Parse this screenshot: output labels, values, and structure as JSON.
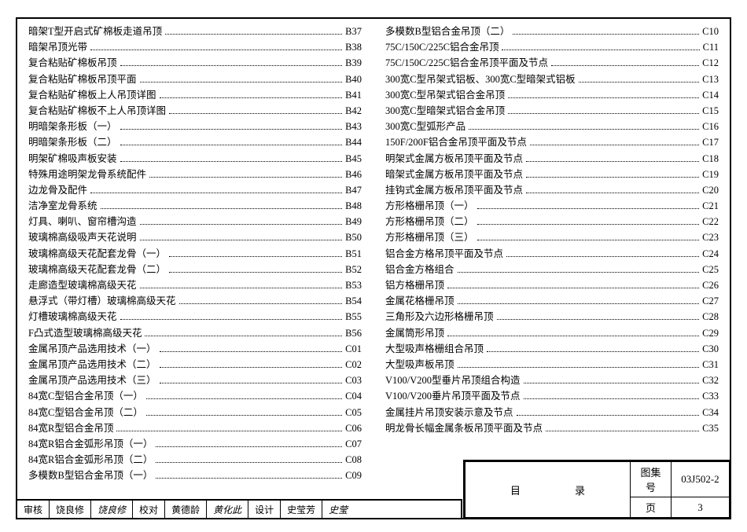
{
  "left_column": [
    {
      "label": "暗架T型开启式矿棉板走道吊顶",
      "code": "B37"
    },
    {
      "label": "暗架吊顶光带",
      "code": "B38"
    },
    {
      "label": "复合粘贴矿棉板吊顶",
      "code": "B39"
    },
    {
      "label": "复合粘贴矿棉板吊顶平面",
      "code": "B40"
    },
    {
      "label": "复合粘贴矿棉板上人吊顶详图",
      "code": "B41"
    },
    {
      "label": "复合粘贴矿棉板不上人吊顶详图",
      "code": "B42"
    },
    {
      "label": "明暗架条形板（一）",
      "code": "B43"
    },
    {
      "label": "明暗架条形板（二）",
      "code": "B44"
    },
    {
      "label": "明架矿棉吸声板安装",
      "code": "B45"
    },
    {
      "label": "特殊用途明架龙骨系统配件",
      "code": "B46"
    },
    {
      "label": "边龙骨及配件",
      "code": "B47"
    },
    {
      "label": "洁净室龙骨系统",
      "code": "B48"
    },
    {
      "label": "灯具、喇叭、窗帘槽沟造",
      "code": "B49"
    },
    {
      "label": "玻璃棉高级吸声天花说明",
      "code": "B50"
    },
    {
      "label": "玻璃棉高级天花配套龙骨（一）",
      "code": "B51"
    },
    {
      "label": "玻璃棉高级天花配套龙骨（二）",
      "code": "B52"
    },
    {
      "label": "走廊造型玻璃棉高级天花",
      "code": "B53"
    },
    {
      "label": "悬浮式（带灯槽）玻璃棉高级天花",
      "code": "B54"
    },
    {
      "label": "灯槽玻璃棉高级天花",
      "code": "B55"
    },
    {
      "label": "F凸式造型玻璃棉高级天花",
      "code": "B56"
    },
    {
      "label": "金属吊顶产品选用技术（一）",
      "code": "C01"
    },
    {
      "label": "金属吊顶产品选用技术（二）",
      "code": "C02"
    },
    {
      "label": "金属吊顶产品选用技术（三）",
      "code": "C03"
    },
    {
      "label": "84宽C型铝合金吊顶（一）",
      "code": "C04"
    },
    {
      "label": "84宽C型铝合金吊顶（二）",
      "code": "C05"
    },
    {
      "label": "84宽R型铝合金吊顶",
      "code": "C06"
    },
    {
      "label": "84宽R铝合金弧形吊顶（一）",
      "code": "C07"
    },
    {
      "label": "84宽R铝合金弧形吊顶（二）",
      "code": "C08"
    },
    {
      "label": "多模数B型铝合金吊顶（一）",
      "code": "C09"
    }
  ],
  "right_column": [
    {
      "label": "多模数B型铝合金吊顶（二）",
      "code": "C10"
    },
    {
      "label": "75C/150C/225C铝合金吊顶",
      "code": "C11"
    },
    {
      "label": "75C/150C/225C铝合金吊顶平面及节点",
      "code": "C12"
    },
    {
      "label": "300宽C型吊架式铝板、300宽C型暗架式铝板",
      "code": "C13"
    },
    {
      "label": "300宽C型吊架式铝合金吊顶",
      "code": "C14"
    },
    {
      "label": "300宽C型暗架式铝合金吊顶",
      "code": "C15"
    },
    {
      "label": "300宽C型弧形产品",
      "code": "C16"
    },
    {
      "label": "150F/200F铝合金吊顶平面及节点",
      "code": "C17"
    },
    {
      "label": "明架式金属方板吊顶平面及节点",
      "code": "C18"
    },
    {
      "label": "暗架式金属方板吊顶平面及节点",
      "code": "C19"
    },
    {
      "label": "挂钩式金属方板吊顶平面及节点",
      "code": "C20"
    },
    {
      "label": "方形格栅吊顶（一）",
      "code": "C21"
    },
    {
      "label": "方形格栅吊顶（二）",
      "code": "C22"
    },
    {
      "label": "方形格栅吊顶（三）",
      "code": "C23"
    },
    {
      "label": "铝合金方格吊顶平面及节点",
      "code": "C24"
    },
    {
      "label": "铝合金方格组合",
      "code": "C25"
    },
    {
      "label": "铝方格栅吊顶",
      "code": "C26"
    },
    {
      "label": "金属花格栅吊顶",
      "code": "C27"
    },
    {
      "label": "三角形及六边形格栅吊顶",
      "code": "C28"
    },
    {
      "label": "金属筒形吊顶",
      "code": "C29"
    },
    {
      "label": "大型吸声格栅组合吊顶",
      "code": "C30"
    },
    {
      "label": "大型吸声板吊顶",
      "code": "C31"
    },
    {
      "label": "V100/V200型垂片吊顶组合构造",
      "code": "C32"
    },
    {
      "label": "V100/V200垂片吊顶平面及节点",
      "code": "C33"
    },
    {
      "label": "金属挂片吊顶安装示意及节点",
      "code": "C34"
    },
    {
      "label": "明龙骨长幅金属条板吊顶平面及节点",
      "code": "C35"
    }
  ],
  "title_block": {
    "title": "目　录",
    "series_label": "图集号",
    "series_value": "03J502-2",
    "page_label": "页",
    "page_value": "3"
  },
  "sign_strip": {
    "check_label": "审核",
    "check_name": "饶良修",
    "check_sig": "饶良修",
    "proof_label": "校对",
    "proof_name": "黄德龄",
    "proof_sig": "黄化此",
    "design_label": "设计",
    "design_name": "史莹芳",
    "design_sig": "史莹"
  }
}
